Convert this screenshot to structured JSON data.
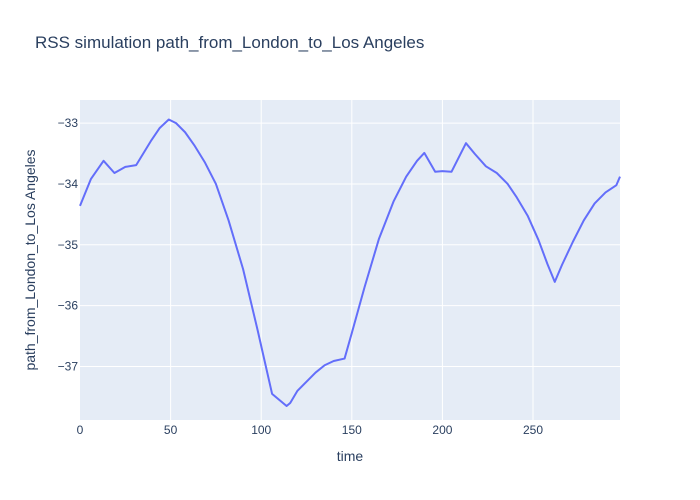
{
  "chart_data": {
    "type": "line",
    "title": "RSS simulation path_from_London_to_Los Angeles",
    "xlabel": "time",
    "ylabel": "path_from_London_to_Los Angeles",
    "xlim": [
      0,
      298
    ],
    "ylim": [
      -37.88,
      -32.62
    ],
    "x_ticks": [
      0,
      50,
      100,
      150,
      200,
      250
    ],
    "x_tick_labels": [
      "0",
      "50",
      "100",
      "150",
      "200",
      "250"
    ],
    "y_ticks": [
      -37,
      -36,
      -35,
      -34,
      -33
    ],
    "y_tick_labels": [
      "−37",
      "−36",
      "−35",
      "−34",
      "−33"
    ],
    "grid": true,
    "line_color": "#636efa",
    "plot_bg_color": "#e5ecf6",
    "series": [
      {
        "x": [
          0,
          6,
          13,
          19,
          25,
          31,
          39,
          44,
          49,
          53,
          58,
          63,
          69,
          75,
          82,
          90,
          98,
          106,
          114,
          116,
          120,
          125,
          130,
          135,
          140,
          146,
          150,
          157,
          165,
          173,
          180,
          186,
          190,
          196,
          200,
          205,
          213,
          218,
          224,
          230,
          236,
          241,
          247,
          253,
          258,
          262,
          266,
          272,
          278,
          284,
          290,
          296,
          298
        ],
        "y": [
          -34.36,
          -33.92,
          -33.62,
          -33.82,
          -33.72,
          -33.69,
          -33.3,
          -33.08,
          -32.94,
          -33.0,
          -33.15,
          -33.36,
          -33.65,
          -34.0,
          -34.6,
          -35.4,
          -36.4,
          -37.45,
          -37.65,
          -37.6,
          -37.4,
          -37.25,
          -37.1,
          -36.98,
          -36.91,
          -36.87,
          -36.45,
          -35.7,
          -34.9,
          -34.29,
          -33.88,
          -33.62,
          -33.49,
          -33.8,
          -33.79,
          -33.8,
          -33.33,
          -33.51,
          -33.71,
          -33.82,
          -34.0,
          -34.22,
          -34.52,
          -34.92,
          -35.32,
          -35.61,
          -35.33,
          -34.95,
          -34.6,
          -34.32,
          -34.14,
          -34.02,
          -33.88
        ]
      }
    ]
  }
}
